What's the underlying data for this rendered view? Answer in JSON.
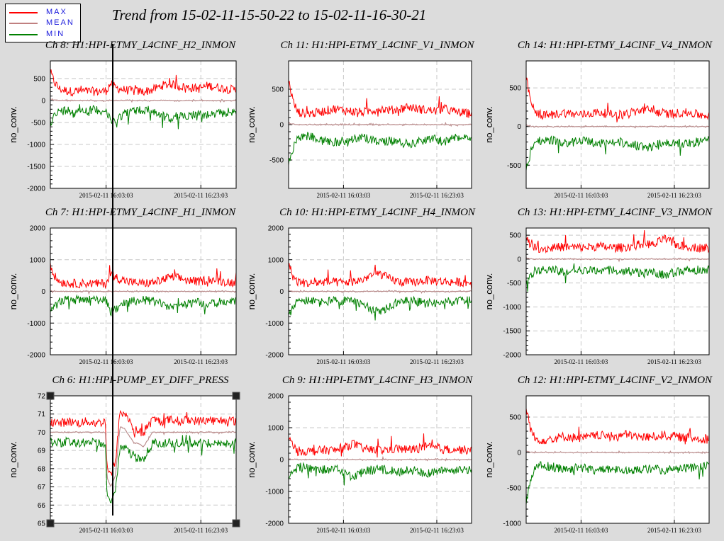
{
  "page": {
    "title": "Trend from 15-02-11-15-50-22 to 15-02-11-16-30-21"
  },
  "legend": {
    "items": [
      {
        "label": "MAX",
        "color": "#ff0000"
      },
      {
        "label": "MEAN",
        "color": "#c08080"
      },
      {
        "label": "MIN",
        "color": "#008000"
      }
    ]
  },
  "colors": {
    "max": "#ff0000",
    "mean": "#bc8f8f",
    "min": "#008000",
    "grid": "#c8c8c8",
    "cursor": "#000000"
  },
  "chart_data": [
    {
      "type": "line",
      "title": "Ch 8: H1:HPI-ETMY_L4CINF_H2_INMON",
      "ylabel": "no_conv.",
      "ylim": [
        -2000,
        900
      ],
      "yticks": [
        -2000,
        -1500,
        -1000,
        -500,
        0,
        500
      ],
      "xtick_labels": [
        "2015-02-11 16:03:03",
        "2015-02-11 16:23:03"
      ],
      "x_minutes": [
        0,
        1,
        2,
        4,
        6,
        8,
        10,
        12,
        13,
        14,
        16,
        18,
        20,
        22,
        24,
        26,
        28,
        30,
        32,
        34,
        36,
        38,
        40
      ],
      "series": [
        {
          "name": "MAX",
          "values": [
            600,
            350,
            220,
            170,
            160,
            170,
            160,
            180,
            350,
            250,
            200,
            170,
            160,
            200,
            300,
            330,
            280,
            250,
            230,
            300,
            260,
            220,
            200
          ]
        },
        {
          "name": "MEAN",
          "values": [
            30,
            10,
            0,
            -5,
            0,
            0,
            -5,
            0,
            0,
            -5,
            0,
            0,
            -5,
            0,
            5,
            0,
            -5,
            0,
            0,
            0,
            -5,
            0,
            0
          ]
        },
        {
          "name": "MIN",
          "values": [
            -450,
            -300,
            -200,
            -180,
            -170,
            -180,
            -170,
            -200,
            -450,
            -400,
            -250,
            -200,
            -180,
            -200,
            -300,
            -380,
            -330,
            -280,
            -260,
            -300,
            -270,
            -230,
            -210
          ]
        }
      ]
    },
    {
      "type": "line",
      "title": "Ch 11: H1:HPI-ETMY_L4CINF_V1_INMON",
      "ylabel": "no_conv.",
      "ylim": [
        -900,
        900
      ],
      "yticks": [
        -500,
        0,
        500
      ],
      "xtick_labels": [
        "2015-02-11 16:03:03",
        "2015-02-11 16:23:03"
      ],
      "x_minutes": [
        0,
        1,
        2,
        4,
        6,
        8,
        10,
        12,
        14,
        16,
        18,
        20,
        22,
        24,
        26,
        28,
        30,
        32,
        34,
        36,
        38,
        40
      ],
      "series": [
        {
          "name": "MAX",
          "values": [
            600,
            300,
            150,
            130,
            140,
            170,
            200,
            180,
            160,
            150,
            170,
            200,
            180,
            190,
            230,
            200,
            180,
            170,
            200,
            160,
            140,
            130
          ]
        },
        {
          "name": "MEAN",
          "values": [
            20,
            5,
            0,
            0,
            0,
            5,
            0,
            0,
            0,
            0,
            5,
            0,
            0,
            0,
            5,
            0,
            0,
            0,
            0,
            0,
            0,
            0
          ]
        },
        {
          "name": "MIN",
          "values": [
            -500,
            -300,
            -150,
            -140,
            -160,
            -200,
            -230,
            -200,
            -180,
            -160,
            -180,
            -220,
            -200,
            -220,
            -250,
            -220,
            -190,
            -180,
            -220,
            -170,
            -150,
            -140
          ]
        }
      ]
    },
    {
      "type": "line",
      "title": "Ch 14: H1:HPI-ETMY_L4CINF_V4_INMON",
      "ylabel": "no_conv.",
      "ylim": [
        -800,
        850
      ],
      "yticks": [
        -500,
        0,
        500
      ],
      "xtick_labels": [
        "2015-02-11 16:03:03",
        "2015-02-11 16:23:03"
      ],
      "x_minutes": [
        0,
        1,
        2,
        4,
        6,
        8,
        10,
        12,
        14,
        16,
        18,
        20,
        22,
        24,
        26,
        28,
        30,
        32,
        34,
        36,
        38,
        40
      ],
      "series": [
        {
          "name": "MAX",
          "values": [
            600,
            300,
            150,
            120,
            130,
            160,
            140,
            130,
            150,
            160,
            140,
            130,
            150,
            170,
            200,
            170,
            150,
            140,
            160,
            150,
            130,
            120
          ]
        },
        {
          "name": "MEAN",
          "values": [
            20,
            5,
            0,
            0,
            0,
            0,
            0,
            0,
            0,
            0,
            0,
            0,
            0,
            0,
            0,
            0,
            0,
            0,
            0,
            0,
            0,
            0
          ]
        },
        {
          "name": "MIN",
          "values": [
            -550,
            -300,
            -170,
            -150,
            -160,
            -200,
            -180,
            -160,
            -180,
            -200,
            -180,
            -170,
            -190,
            -220,
            -260,
            -220,
            -190,
            -170,
            -200,
            -190,
            -170,
            -150
          ]
        }
      ]
    },
    {
      "type": "line",
      "title": "Ch 7: H1:HPI-ETMY_L4CINF_H1_INMON",
      "ylabel": "no_conv.",
      "ylim": [
        -2000,
        2000
      ],
      "yticks": [
        -2000,
        -1000,
        0,
        1000,
        2000
      ],
      "xtick_labels": [
        "2015-02-11 16:03:03",
        "2015-02-11 16:23:03"
      ],
      "x_minutes": [
        0,
        1,
        2,
        4,
        6,
        8,
        10,
        12,
        13,
        14,
        16,
        18,
        20,
        22,
        24,
        26,
        28,
        30,
        32,
        34,
        36,
        38,
        40
      ],
      "series": [
        {
          "name": "MAX",
          "values": [
            800,
            400,
            250,
            200,
            190,
            200,
            190,
            200,
            500,
            400,
            280,
            220,
            200,
            220,
            300,
            400,
            350,
            280,
            250,
            330,
            280,
            240,
            220
          ]
        },
        {
          "name": "MEAN",
          "values": [
            20,
            5,
            0,
            0,
            0,
            0,
            0,
            0,
            0,
            0,
            0,
            0,
            0,
            0,
            0,
            0,
            0,
            0,
            0,
            0,
            0,
            0,
            0
          ]
        },
        {
          "name": "MIN",
          "values": [
            -600,
            -400,
            -260,
            -220,
            -210,
            -220,
            -210,
            -230,
            -600,
            -500,
            -320,
            -250,
            -220,
            -240,
            -340,
            -450,
            -400,
            -320,
            -280,
            -360,
            -300,
            -260,
            -240
          ]
        }
      ]
    },
    {
      "type": "line",
      "title": "Ch 10: H1:HPI-ETMY_L4CINF_H4_INMON",
      "ylabel": "no_conv.",
      "ylim": [
        -2000,
        2000
      ],
      "yticks": [
        -2000,
        -1000,
        0,
        1000,
        2000
      ],
      "xtick_labels": [
        "2015-02-11 16:03:03",
        "2015-02-11 16:23:03"
      ],
      "x_minutes": [
        0,
        1,
        2,
        4,
        6,
        8,
        10,
        12,
        14,
        16,
        18,
        20,
        22,
        24,
        26,
        28,
        30,
        32,
        34,
        36,
        38,
        40
      ],
      "series": [
        {
          "name": "MAX",
          "values": [
            800,
            400,
            250,
            200,
            210,
            250,
            230,
            220,
            250,
            300,
            450,
            500,
            350,
            250,
            220,
            240,
            300,
            280,
            250,
            240,
            230,
            220
          ]
        },
        {
          "name": "MEAN",
          "values": [
            20,
            5,
            0,
            0,
            0,
            0,
            0,
            0,
            0,
            0,
            0,
            0,
            0,
            0,
            0,
            0,
            0,
            0,
            0,
            0,
            0,
            0
          ]
        },
        {
          "name": "MIN",
          "values": [
            -700,
            -400,
            -260,
            -220,
            -230,
            -270,
            -250,
            -240,
            -270,
            -330,
            -500,
            -600,
            -400,
            -270,
            -240,
            -260,
            -330,
            -300,
            -270,
            -260,
            -250,
            -240
          ]
        }
      ]
    },
    {
      "type": "line",
      "title": "Ch 13: H1:HPI-ETMY_L4CINF_V3_INMON",
      "ylabel": "no_conv.",
      "ylim": [
        -2000,
        650
      ],
      "yticks": [
        -2000,
        -1500,
        -1000,
        -500,
        0,
        500
      ],
      "xtick_labels": [
        "2015-02-11 16:03:03",
        "2015-02-11 16:23:03"
      ],
      "x_minutes": [
        0,
        1,
        2,
        4,
        6,
        8,
        10,
        12,
        14,
        16,
        18,
        20,
        22,
        24,
        26,
        28,
        30,
        32,
        34,
        36,
        38,
        40
      ],
      "series": [
        {
          "name": "MAX",
          "values": [
            450,
            300,
            200,
            180,
            200,
            220,
            210,
            200,
            220,
            230,
            210,
            200,
            220,
            250,
            300,
            250,
            400,
            300,
            230,
            220,
            200,
            190
          ]
        },
        {
          "name": "MEAN",
          "values": [
            20,
            5,
            0,
            0,
            0,
            0,
            0,
            0,
            0,
            0,
            0,
            0,
            0,
            0,
            0,
            0,
            0,
            0,
            0,
            0,
            0,
            0
          ]
        },
        {
          "name": "MIN",
          "values": [
            -500,
            -300,
            -200,
            -180,
            -190,
            -210,
            -200,
            -190,
            -210,
            -220,
            -200,
            -190,
            -210,
            -230,
            -260,
            -230,
            -300,
            -250,
            -210,
            -200,
            -190,
            -180
          ]
        }
      ]
    },
    {
      "type": "line",
      "title": "Ch 6: H1:HPI-PUMP_EY_DIFF_PRESS",
      "ylabel": "no_conv.",
      "ylim": [
        65,
        72
      ],
      "yticks": [
        65,
        66,
        67,
        68,
        69,
        70,
        71,
        72
      ],
      "xtick_labels": [
        "2015-02-11 16:03:03",
        "2015-02-11 16:23:03"
      ],
      "x_minutes": [
        0,
        2,
        4,
        6,
        8,
        10,
        11.9,
        12.2,
        13,
        14,
        15,
        16,
        17,
        18,
        19,
        20,
        22,
        24,
        26,
        28,
        30,
        32,
        34,
        36,
        38,
        40
      ],
      "series": [
        {
          "name": "MAX",
          "values": [
            70.5,
            70.4,
            70.5,
            70.4,
            70.5,
            70.4,
            70.5,
            68.0,
            67.5,
            68.2,
            71.0,
            70.9,
            70.6,
            70.0,
            70.0,
            69.8,
            70.6,
            70.5,
            70.6,
            70.5,
            70.6,
            70.5,
            70.6,
            70.5,
            70.6,
            70.5
          ]
        },
        {
          "name": "MEAN",
          "values": [
            70.0,
            70.0,
            70.0,
            70.0,
            70.0,
            70.0,
            70.0,
            67.5,
            67.0,
            67.6,
            70.3,
            70.2,
            69.8,
            69.4,
            69.4,
            69.2,
            70.0,
            70.0,
            70.0,
            70.0,
            70.0,
            70.0,
            70.0,
            70.0,
            70.0,
            70.0
          ]
        },
        {
          "name": "MIN",
          "values": [
            69.6,
            69.5,
            69.6,
            69.5,
            69.6,
            69.5,
            69.5,
            66.5,
            66.2,
            66.8,
            69.2,
            69.3,
            69.0,
            68.8,
            68.6,
            68.6,
            69.5,
            69.5,
            69.5,
            69.5,
            69.5,
            69.5,
            69.5,
            69.5,
            69.5,
            69.5
          ]
        }
      ]
    },
    {
      "type": "line",
      "title": "Ch 9: H1:HPI-ETMY_L4CINF_H3_INMON",
      "ylabel": "no_conv.",
      "ylim": [
        -2000,
        2000
      ],
      "yticks": [
        -2000,
        -1000,
        0,
        1000,
        2000
      ],
      "xtick_labels": [
        "2015-02-11 16:03:03",
        "2015-02-11 16:23:03"
      ],
      "x_minutes": [
        0,
        1,
        2,
        4,
        6,
        8,
        10,
        12,
        14,
        16,
        18,
        20,
        22,
        24,
        26,
        28,
        30,
        32,
        34,
        36,
        38,
        40
      ],
      "series": [
        {
          "name": "MAX",
          "values": [
            600,
            350,
            220,
            200,
            210,
            250,
            230,
            300,
            450,
            300,
            250,
            230,
            260,
            300,
            250,
            280,
            350,
            300,
            260,
            280,
            250,
            230
          ]
        },
        {
          "name": "MEAN",
          "values": [
            20,
            5,
            0,
            0,
            0,
            0,
            0,
            0,
            0,
            0,
            0,
            0,
            0,
            0,
            0,
            0,
            0,
            0,
            0,
            0,
            0,
            0
          ]
        },
        {
          "name": "MIN",
          "values": [
            -500,
            -350,
            -230,
            -210,
            -220,
            -260,
            -240,
            -320,
            -500,
            -350,
            -270,
            -250,
            -280,
            -330,
            -280,
            -300,
            -380,
            -330,
            -290,
            -310,
            -270,
            -250
          ]
        }
      ]
    },
    {
      "type": "line",
      "title": "Ch 12: H1:HPI-ETMY_L4CINF_V2_INMON",
      "ylabel": "no_conv.",
      "ylim": [
        -1000,
        800
      ],
      "yticks": [
        -1000,
        -500,
        0,
        500
      ],
      "xtick_labels": [
        "2015-02-11 16:03:03",
        "2015-02-11 16:23:03"
      ],
      "x_minutes": [
        0,
        1,
        2,
        4,
        6,
        8,
        10,
        12,
        14,
        16,
        18,
        20,
        22,
        24,
        26,
        28,
        30,
        32,
        34,
        36,
        38,
        40
      ],
      "series": [
        {
          "name": "MAX",
          "values": [
            600,
            300,
            160,
            150,
            170,
            200,
            190,
            180,
            200,
            220,
            200,
            210,
            230,
            200,
            190,
            200,
            220,
            200,
            190,
            180,
            170,
            160
          ]
        },
        {
          "name": "MEAN",
          "values": [
            20,
            5,
            0,
            0,
            0,
            0,
            0,
            0,
            0,
            0,
            0,
            0,
            0,
            0,
            0,
            0,
            0,
            0,
            0,
            0,
            0,
            0
          ]
        },
        {
          "name": "MIN",
          "values": [
            -700,
            -350,
            -170,
            -160,
            -180,
            -210,
            -200,
            -190,
            -210,
            -230,
            -210,
            -220,
            -240,
            -210,
            -200,
            -210,
            -230,
            -210,
            -200,
            -190,
            -180,
            -170
          ]
        }
      ]
    }
  ]
}
